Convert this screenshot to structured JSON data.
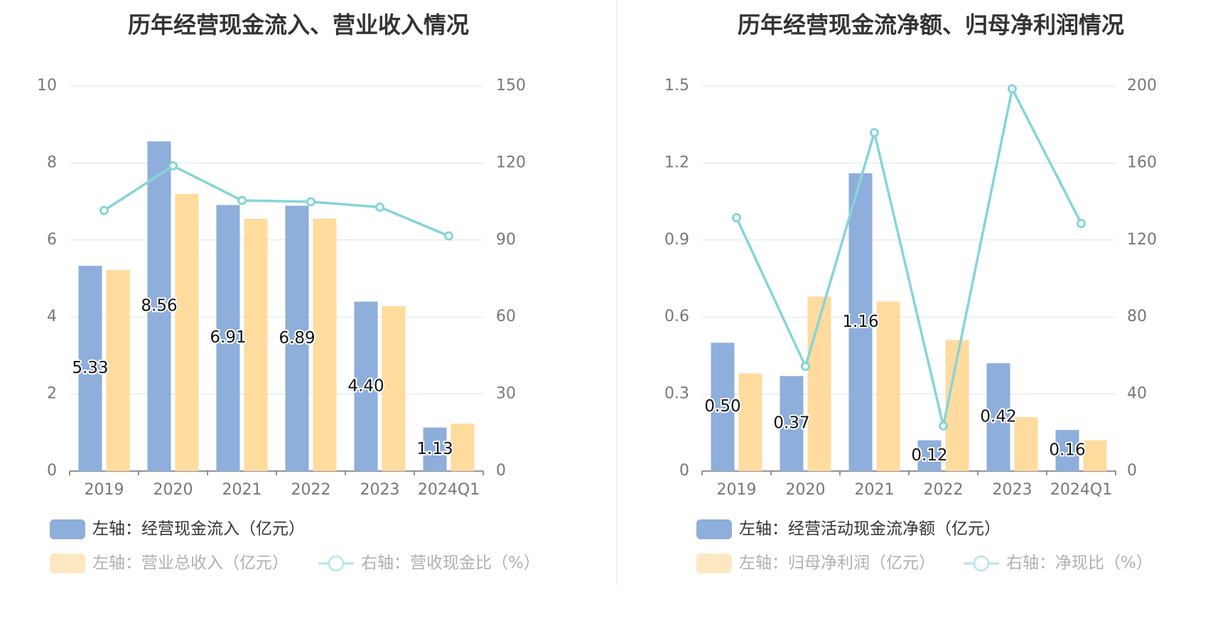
{
  "chart_data": [
    {
      "type": "bar",
      "title": "历年经营现金流入、营业收入情况",
      "categories": [
        "2019",
        "2020",
        "2021",
        "2022",
        "2023",
        "2024Q1"
      ],
      "left_axis": {
        "ylim": [
          0,
          10
        ],
        "ticks": [
          "0",
          "2",
          "4",
          "6",
          "8",
          "10"
        ]
      },
      "right_axis": {
        "ylim": [
          0,
          150
        ],
        "ticks": [
          "0",
          "30",
          "60",
          "90",
          "120",
          "150"
        ]
      },
      "grid": true,
      "legend_position": "bottom",
      "series": [
        {
          "name": "左轴：经营现金流入（亿元）",
          "type": "bar",
          "axis": "left",
          "color": "#8eaedb",
          "values": [
            5.33,
            8.56,
            6.91,
            6.89,
            4.4,
            1.13
          ],
          "labels": [
            "5.33",
            "8.56",
            "6.91",
            "6.89",
            "4.40",
            "1.13"
          ]
        },
        {
          "name": "左轴：营业总收入（亿元）",
          "type": "bar",
          "axis": "left",
          "color": "#ffdb9e",
          "values": [
            5.22,
            7.2,
            6.55,
            6.56,
            4.28,
            1.23
          ]
        },
        {
          "name": "右轴：营收现金比（%）",
          "type": "line",
          "axis": "right",
          "color": "#86d4d8",
          "values": [
            101.5,
            118.9,
            105.4,
            104.9,
            102.8,
            91.6
          ]
        }
      ]
    },
    {
      "type": "bar",
      "title": "历年经营现金流净额、归母净利润情况",
      "categories": [
        "2019",
        "2020",
        "2021",
        "2022",
        "2023",
        "2024Q1"
      ],
      "left_axis": {
        "ylim": [
          0,
          1.5
        ],
        "ticks": [
          "0",
          "0.3",
          "0.6",
          "0.9",
          "1.2",
          "1.5"
        ]
      },
      "right_axis": {
        "ylim": [
          0,
          200
        ],
        "ticks": [
          "0",
          "40",
          "80",
          "120",
          "160",
          "200"
        ]
      },
      "grid": true,
      "legend_position": "bottom",
      "series": [
        {
          "name": "左轴：经营活动现金流净额（亿元）",
          "type": "bar",
          "axis": "left",
          "color": "#8eaedb",
          "values": [
            0.5,
            0.37,
            1.16,
            0.12,
            0.42,
            0.16
          ],
          "labels": [
            "0.50",
            "0.37",
            "1.16",
            "0.12",
            "0.42",
            "0.16"
          ]
        },
        {
          "name": "左轴：归母净利润（亿元）",
          "type": "bar",
          "axis": "left",
          "color": "#ffdb9e",
          "values": [
            0.38,
            0.68,
            0.66,
            0.51,
            0.21,
            0.12
          ]
        },
        {
          "name": "右轴：净现比（%）",
          "type": "line",
          "axis": "right",
          "color": "#86d4d8",
          "values": [
            131.6,
            54.4,
            175.8,
            23.5,
            198.5,
            128.6
          ]
        }
      ]
    }
  ]
}
